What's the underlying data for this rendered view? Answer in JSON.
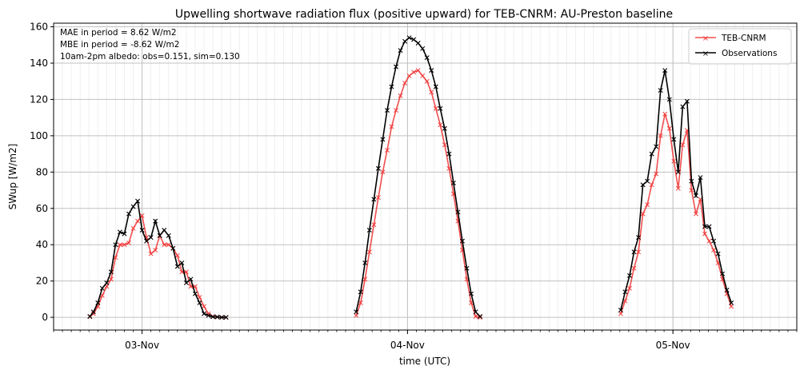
{
  "chart_data": {
    "type": "line",
    "title": "Upwelling shortwave radiation flux (positive upward) for TEB-CNRM: AU-Preston baseline",
    "xlabel": "time (UTC)",
    "ylabel": "SWup [W/m2]",
    "x_unit": "hours",
    "xlim": [
      -10,
      74
    ],
    "ylim": [
      -7,
      162
    ],
    "y_ticks": [
      0,
      20,
      40,
      60,
      80,
      100,
      120,
      140,
      160
    ],
    "x_ticks": [
      {
        "x": 0,
        "label": "03-Nov"
      },
      {
        "x": 30,
        "label": "04-Nov"
      },
      {
        "x": 60,
        "label": "05-Nov"
      }
    ],
    "grid": true,
    "legend_position": "upper right",
    "annotations": [
      "MAE in period = 8.62 W/m2",
      "MBE in period = -8.62 W/m2",
      "10am-2pm albedo: obs=0.151, sim=0.130"
    ],
    "series": [
      {
        "name": "TEB-CNRM",
        "color": "#f03030",
        "marker": "x",
        "segments": [
          {
            "x": [
              -5.9,
              -5.5,
              -5.0,
              -4.5,
              -4.0,
              -3.5,
              -3.0,
              -2.5,
              -2.0,
              -1.5,
              -1.0,
              -0.5,
              0.0,
              0.5,
              1.0,
              1.5,
              2.0,
              2.5,
              3.0,
              3.5,
              4.0,
              4.5,
              5.0,
              5.5,
              6.0,
              6.5,
              7.0,
              7.5,
              8.0,
              8.5,
              9.0,
              9.5,
              10.0,
              10.5,
              11.0,
              11.5
            ],
            "y": [
              0.3,
              2,
              6,
              12,
              17,
              21,
              33,
              40,
              40,
              41,
              49,
              53,
              56,
              44,
              35,
              37,
              45,
              40,
              40,
              38,
              34,
              25,
              25,
              17,
              17,
              11,
              6,
              2,
              0.5,
              0.2,
              0,
              0,
              null,
              null,
              null,
              null
            ]
          },
          {
            "x": [
              24.2,
              24.7,
              25.2,
              25.7,
              26.2,
              26.7,
              27.2,
              27.7,
              28.2,
              28.7,
              29.2,
              29.7,
              30.2,
              30.7,
              31.2,
              31.7,
              32.2,
              32.7,
              33.2,
              33.7,
              34.2,
              34.7,
              35.2,
              35.7,
              36.2,
              36.7,
              37.2,
              37.7,
              38.2,
              38.7,
              39.2,
              39.7,
              40.2,
              40.7,
              41.2
            ],
            "y": [
              1,
              8,
              21,
              36,
              51,
              66,
              80,
              92,
              105,
              114,
              122,
              129,
              133,
              135,
              136,
              133,
              130,
              124,
              115,
              106,
              95,
              82,
              68,
              53,
              37,
              21,
              8,
              0.5,
              0,
              null,
              null,
              null,
              null,
              null,
              null
            ]
          },
          {
            "x": [
              54.1,
              54.6,
              55.1,
              55.6,
              56.1,
              56.6,
              57.1,
              57.6,
              58.1,
              58.6,
              59.1,
              59.6,
              60.1,
              60.6,
              61.1,
              61.6,
              62.1,
              62.6,
              63.1,
              63.6,
              64.1,
              64.6,
              65.1,
              65.6,
              66.1,
              66.6,
              67.1,
              67.6,
              68.1,
              68.6,
              69.1,
              69.6
            ],
            "y": [
              2,
              9,
              16,
              27,
              36,
              57,
              62,
              73,
              79,
              100,
              112,
              104,
              86,
              71,
              95,
              103,
              70,
              57,
              65,
              46,
              42,
              37,
              30,
              21,
              13,
              6,
              null,
              null,
              null,
              null,
              null,
              null
            ]
          }
        ]
      },
      {
        "name": "Observations",
        "color": "#000000",
        "marker": "x",
        "segments": [
          {
            "x": [
              -5.9,
              -5.5,
              -5.0,
              -4.5,
              -4.0,
              -3.5,
              -3.0,
              -2.5,
              -2.0,
              -1.5,
              -1.0,
              -0.5,
              0.0,
              0.5,
              1.0,
              1.5,
              2.0,
              2.5,
              3.0,
              3.5,
              4.0,
              4.5,
              5.0,
              5.5,
              6.0,
              6.5,
              7.0,
              7.5,
              8.0,
              8.5,
              9.0,
              9.5,
              10.0,
              10.5,
              11.0,
              11.5
            ],
            "y": [
              0.5,
              3,
              8,
              16,
              19,
              25,
              40,
              47,
              46,
              57,
              61,
              64,
              48,
              42,
              44,
              53,
              45,
              48,
              45,
              38,
              28,
              30,
              19,
              21,
              13,
              8,
              2,
              1,
              0.3,
              0.2,
              0,
              0,
              null,
              null,
              null,
              null
            ]
          },
          {
            "x": [
              24.2,
              24.7,
              25.2,
              25.7,
              26.2,
              26.7,
              27.2,
              27.7,
              28.2,
              28.7,
              29.2,
              29.7,
              30.2,
              30.7,
              31.2,
              31.7,
              32.2,
              32.7,
              33.2,
              33.7,
              34.2,
              34.7,
              35.2,
              35.7,
              36.2,
              36.7,
              37.2,
              37.7,
              38.2,
              38.7,
              39.2,
              39.7,
              40.2,
              40.7,
              41.2
            ],
            "y": [
              3,
              14,
              30,
              48,
              65,
              82,
              98,
              114,
              127,
              138,
              147,
              152,
              154,
              153,
              151,
              148,
              143,
              136,
              127,
              115,
              104,
              90,
              74,
              58,
              42,
              27,
              13,
              3,
              0.5,
              null,
              null,
              null,
              null,
              null,
              null
            ]
          },
          {
            "x": [
              54.1,
              54.6,
              55.1,
              55.6,
              56.1,
              56.6,
              57.1,
              57.6,
              58.1,
              58.6,
              59.1,
              59.6,
              60.1,
              60.6,
              61.1,
              61.6,
              62.1,
              62.6,
              63.1,
              63.6,
              64.1,
              64.6,
              65.1,
              65.6,
              66.1,
              66.6,
              67.1,
              67.6,
              68.1,
              68.6,
              69.1,
              69.6
            ],
            "y": [
              4,
              14,
              23,
              36,
              44,
              73,
              75,
              90,
              94,
              125,
              136,
              120,
              98,
              80,
              116,
              119,
              75,
              67,
              77,
              50,
              50,
              42,
              35,
              24,
              15,
              8,
              null,
              null,
              null,
              null,
              null,
              null
            ]
          }
        ]
      }
    ]
  }
}
